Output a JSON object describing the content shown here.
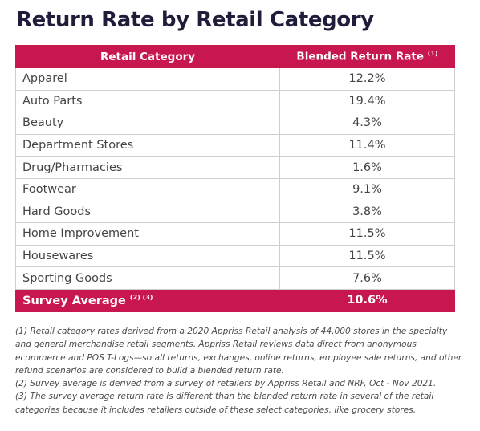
{
  "chart_data": {
    "type": "table",
    "title": "Return Rate by Retail Category",
    "columns": [
      "Retail Category",
      "Blended Return Rate"
    ],
    "column_note_marks": [
      "",
      "(1)"
    ],
    "rows": [
      {
        "category": "Apparel",
        "rate": "12.2%"
      },
      {
        "category": "Auto Parts",
        "rate": "19.4%"
      },
      {
        "category": "Beauty",
        "rate": "4.3%"
      },
      {
        "category": "Department Stores",
        "rate": "11.4%"
      },
      {
        "category": "Drug/Pharmacies",
        "rate": "1.6%"
      },
      {
        "category": "Footwear",
        "rate": "9.1%"
      },
      {
        "category": "Hard Goods",
        "rate": "3.8%"
      },
      {
        "category": "Home Improvement",
        "rate": "11.5%"
      },
      {
        "category": "Housewares",
        "rate": "11.5%"
      },
      {
        "category": "Sporting Goods",
        "rate": "7.6%"
      }
    ],
    "summary": {
      "label": "Survey Average",
      "note_marks": "(2) (3)",
      "rate": "10.6%"
    },
    "header_color": "#c8174f",
    "title_color": "#1f1d3a"
  },
  "footnotes": [
    "(1) Retail category rates derived from a 2020 Appriss Retail analysis of 44,000 stores in the specialty and general merchandise retail segments. Appriss Retail reviews data direct from anonymous ecommerce and POS T-Logs—so all returns, exchanges, online returns, employee sale returns, and other refund scenarios are considered to build a blended return rate.",
    "(2) Survey average is derived from a survey of retailers by Appriss Retail and NRF, Oct - Nov 2021.",
    "(3) The survey average return rate is different than the blended return rate in several of the retail categories because it includes retailers outside of these select categories, like grocery stores."
  ]
}
